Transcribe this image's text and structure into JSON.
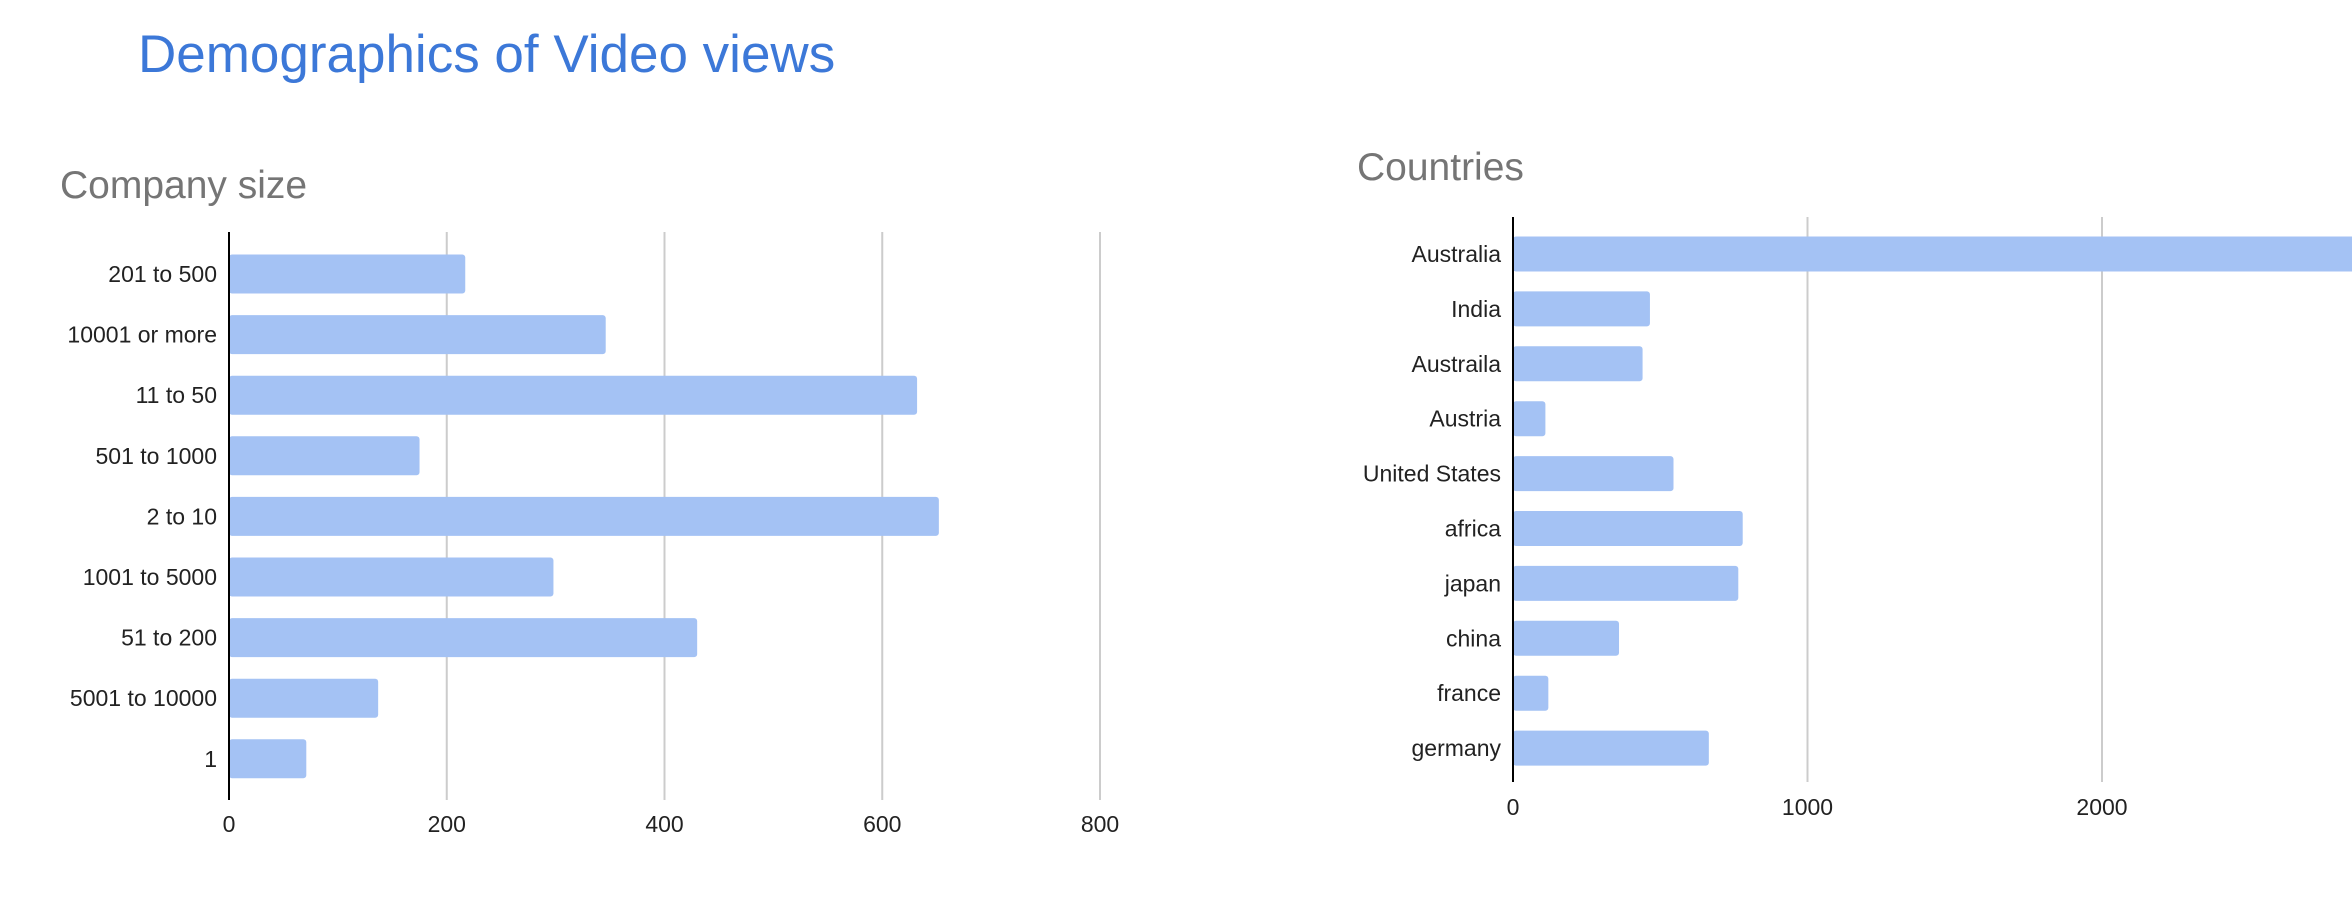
{
  "page": {
    "title": "Demographics of Video views"
  },
  "colors": {
    "title": "#3c78d8",
    "chart_title": "#757575",
    "bar": "#a4c2f4",
    "gridline": "#cccccc",
    "axis": "#000000",
    "label": "#222222"
  },
  "chart_data": [
    {
      "type": "bar",
      "orientation": "horizontal",
      "title": "Company size",
      "categories": [
        "201 to 500",
        "10001 or more",
        "11 to 50",
        "501 to 1000",
        "2 to 10",
        "1001 to 5000",
        "51 to 200",
        "5001 to 10000",
        "1"
      ],
      "values": [
        217,
        346,
        632,
        175,
        652,
        298,
        430,
        137,
        71
      ],
      "xlim": [
        0,
        800
      ],
      "xticks": [
        0,
        200,
        400,
        600,
        800
      ],
      "xlabel": "",
      "ylabel": "",
      "grid": true,
      "legend": "none"
    },
    {
      "type": "bar",
      "orientation": "horizontal",
      "title": "Countries",
      "categories": [
        "Australia",
        "India",
        "Austraila",
        "Austria",
        "United States",
        "africa",
        "japan",
        "china",
        "france",
        "germany"
      ],
      "values": [
        2900,
        465,
        440,
        110,
        545,
        780,
        765,
        360,
        120,
        665
      ],
      "xlim": [
        0,
        2800
      ],
      "xticks": [
        0,
        1000,
        2000
      ],
      "xlabel": "",
      "ylabel": "",
      "grid": true,
      "legend": "none"
    }
  ]
}
